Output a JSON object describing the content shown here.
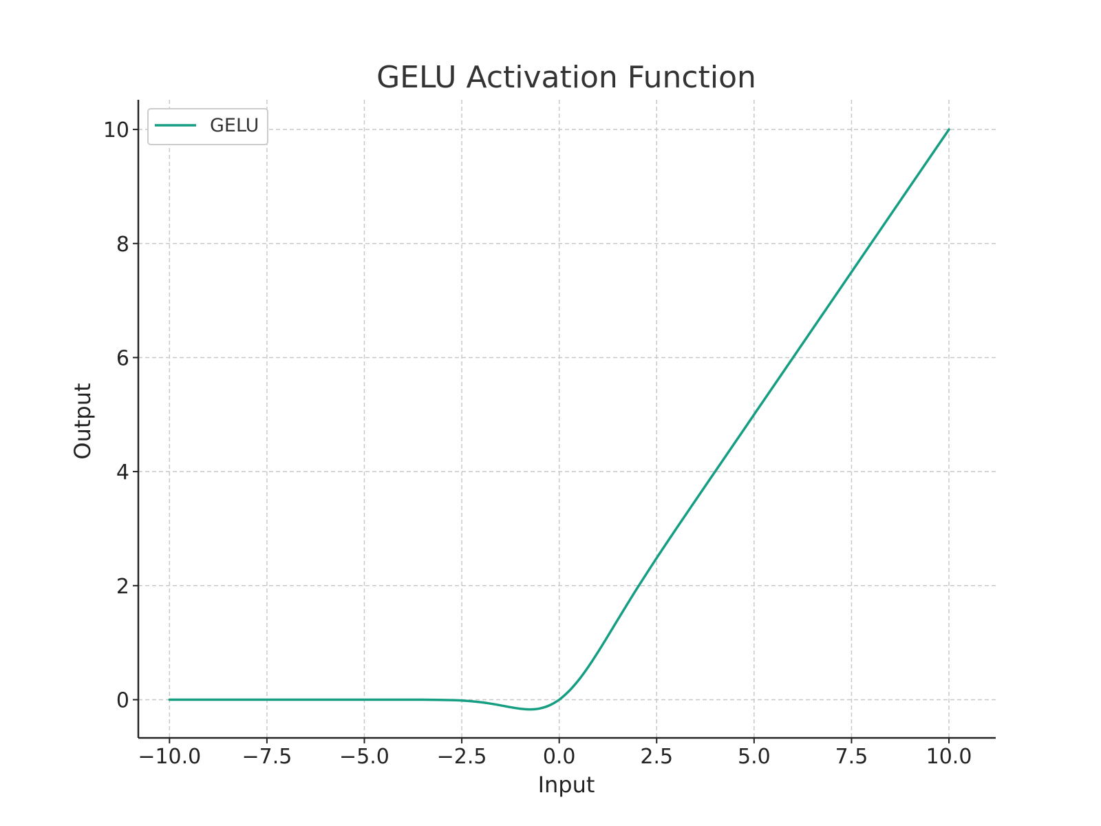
{
  "chart_data": {
    "type": "line",
    "title": "GELU Activation Function",
    "xlabel": "Input",
    "ylabel": "Output",
    "xlim": [
      -10.8,
      11.2
    ],
    "ylim": [
      -0.67,
      10.52
    ],
    "xticks": [
      -10.0,
      -7.5,
      -5.0,
      -2.5,
      0.0,
      2.5,
      5.0,
      7.5,
      10.0
    ],
    "xtick_labels": [
      "−10.0",
      "−7.5",
      "−5.0",
      "−2.5",
      "0.0",
      "2.5",
      "5.0",
      "7.5",
      "10.0"
    ],
    "yticks": [
      0,
      2,
      4,
      6,
      8,
      10
    ],
    "ytick_labels": [
      "0",
      "2",
      "4",
      "6",
      "8",
      "10"
    ],
    "grid": true,
    "legend_position": "top-left",
    "series": [
      {
        "name": "GELU",
        "color": "#169e83",
        "x": [
          -10.0,
          -8.0,
          -6.0,
          -4.0,
          -3.5,
          -3.0,
          -2.75,
          -2.5,
          -2.25,
          -2.0,
          -1.75,
          -1.5,
          -1.25,
          -1.0,
          -0.75,
          -0.5,
          -0.25,
          0.0,
          0.25,
          0.5,
          0.75,
          1.0,
          1.25,
          1.5,
          1.75,
          2.0,
          2.5,
          3.0,
          3.5,
          4.0,
          5.0,
          6.0,
          7.0,
          8.0,
          9.0,
          10.0
        ],
        "y": [
          0.0,
          0.0,
          0.0,
          -0.0001,
          -0.0008,
          -0.004,
          -0.0082,
          -0.0155,
          -0.0274,
          -0.0455,
          -0.0702,
          -0.1002,
          -0.132,
          -0.1587,
          -0.17,
          -0.1543,
          -0.0994,
          0.0,
          0.1506,
          0.3457,
          0.58,
          0.8413,
          1.118,
          1.3998,
          1.6798,
          1.9545,
          2.4845,
          2.996,
          3.4992,
          3.9999,
          5.0,
          6.0,
          7.0,
          8.0,
          9.0,
          10.0
        ]
      }
    ]
  }
}
